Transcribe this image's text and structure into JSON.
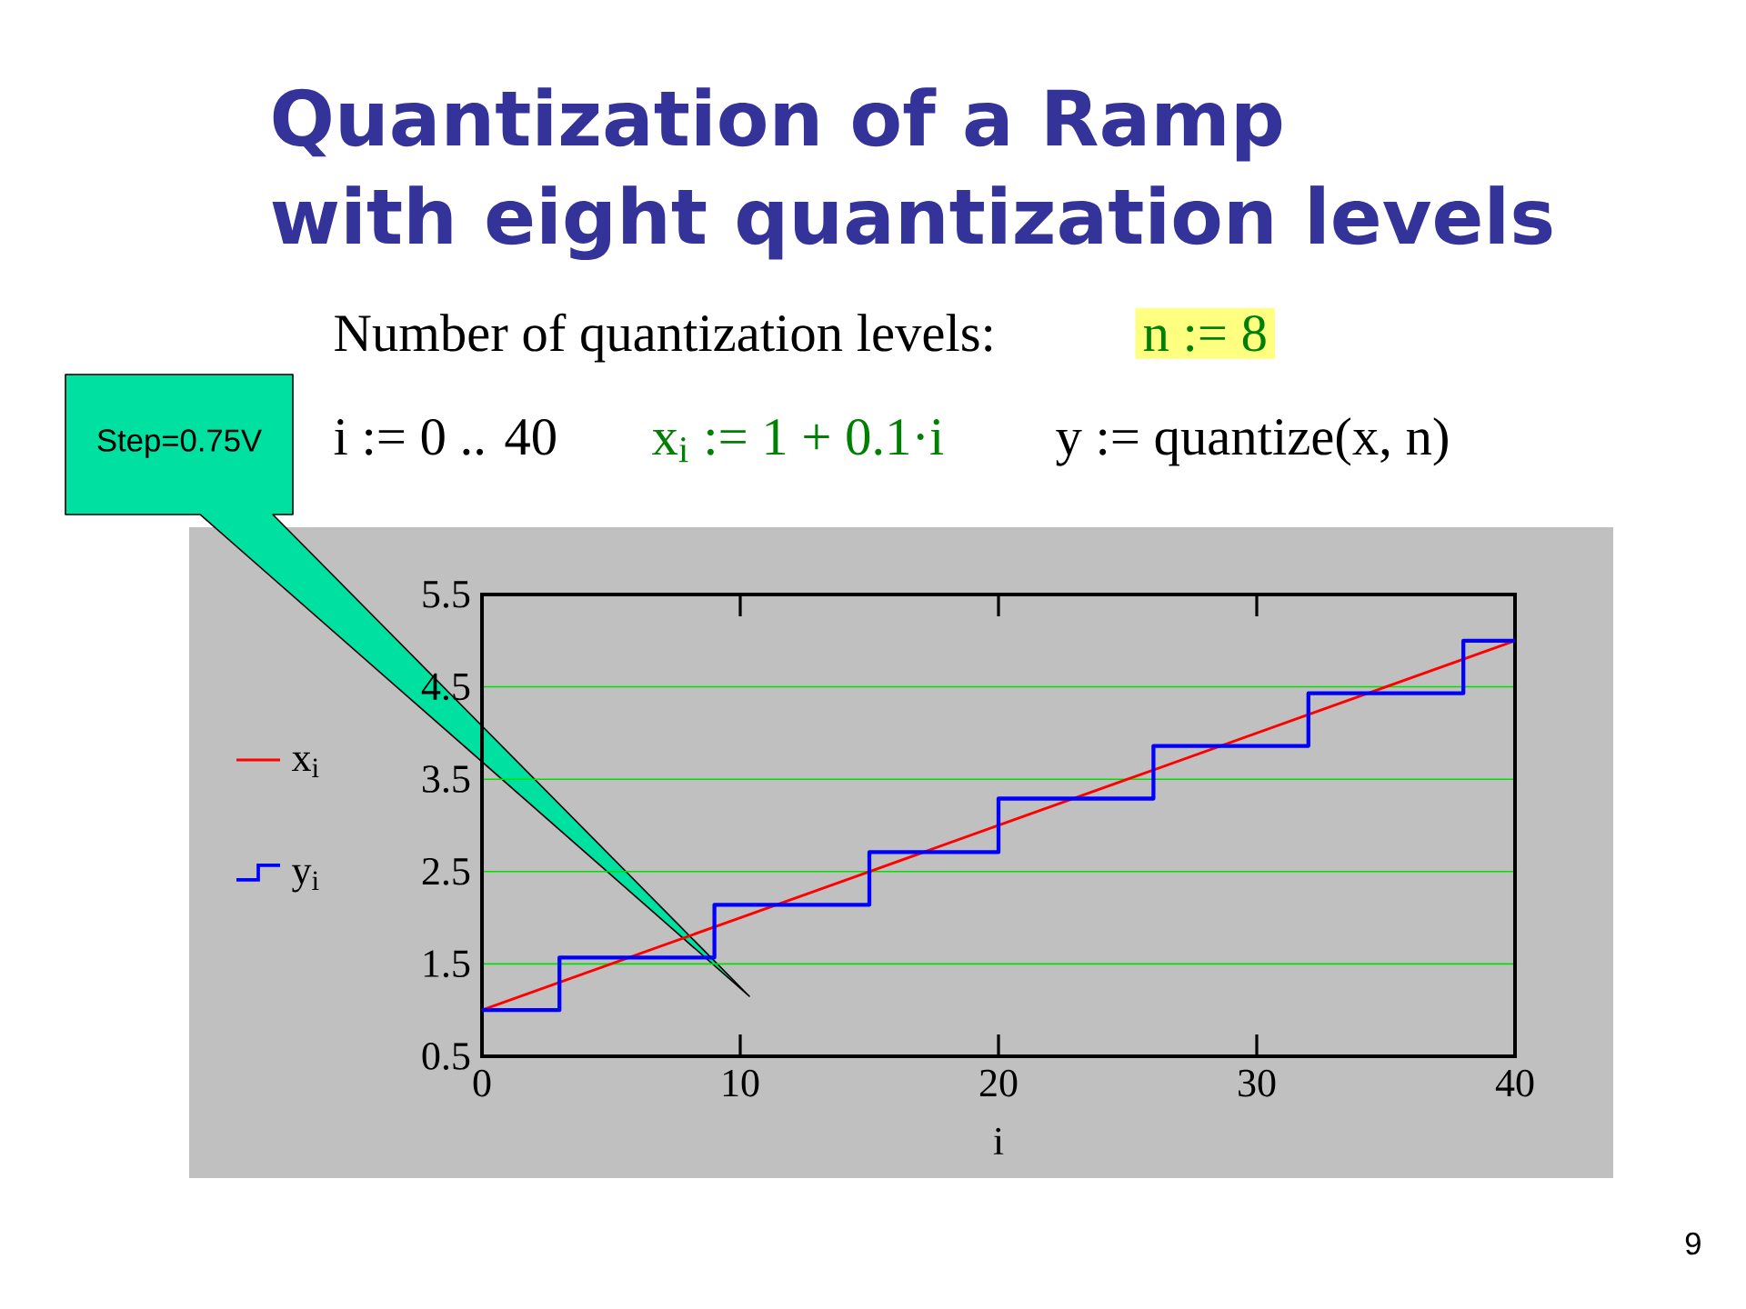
{
  "chart_data": {
    "type": "line",
    "title": "Quantization of a Ramp with eight quantization levels",
    "xlabel": "i",
    "annotations": [
      "Number of quantization levels:",
      "n := 8",
      "i := 0 .. 40",
      "x$_{i}$ := 1 + 0.1·i",
      "y := quantize(x, n)",
      "Step=0.75V",
      "9"
    ],
    "series": [
      {
        "name": "x$_{i}$",
        "type": "line",
        "color": "#ff0000",
        "x": [
          0,
          5,
          10,
          15,
          20,
          25,
          30,
          35,
          40
        ],
        "values": [
          1.0,
          1.5,
          2.0,
          2.5,
          3.0,
          3.5,
          4.0,
          4.5,
          5.0
        ]
      },
      {
        "name": "y$_{i}$",
        "type": "step",
        "color": "#0000ff",
        "x": [
          0,
          3,
          9,
          15,
          20,
          26,
          32,
          38,
          40
        ],
        "values": [
          1.0,
          1.57,
          2.14,
          2.71,
          3.29,
          3.86,
          4.43,
          5.0,
          5.0
        ]
      }
    ],
    "xlim": [
      0,
      40
    ],
    "ylim": [
      0.5,
      5.5
    ],
    "xticks": [
      0,
      10,
      20,
      30,
      40
    ],
    "yticks": [
      0.5,
      1.5,
      2.5,
      3.5,
      4.5,
      5.5
    ],
    "grid": "y",
    "legend": "left"
  }
}
